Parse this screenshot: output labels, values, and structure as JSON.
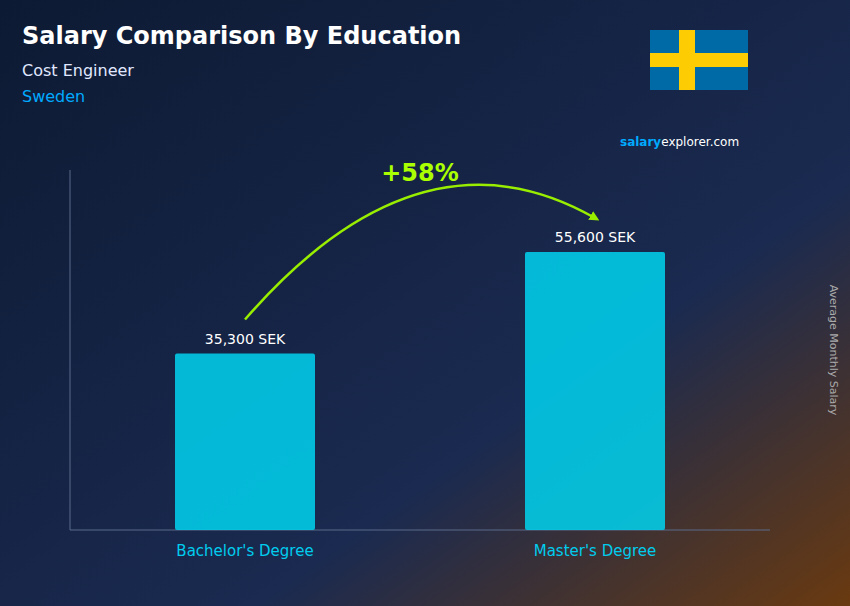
{
  "chart_data": {
    "type": "bar",
    "title": "Salary Comparison By Education",
    "subtitle": "Cost Engineer",
    "annotations": [
      "Sweden",
      "salary",
      "explorer.com",
      "+58%"
    ],
    "ylabel": "Average Monthly Salary",
    "categories": [
      "Bachelor's Degree",
      "Master's Degree"
    ],
    "values": [
      35300,
      55600
    ],
    "value_labels": [
      "35,300 SEK",
      "55,600 SEK"
    ],
    "data_labels": true,
    "color": "#00d4f0",
    "ylim": [
      0,
      72000
    ],
    "grid": false,
    "tick_labels": "x"
  }
}
